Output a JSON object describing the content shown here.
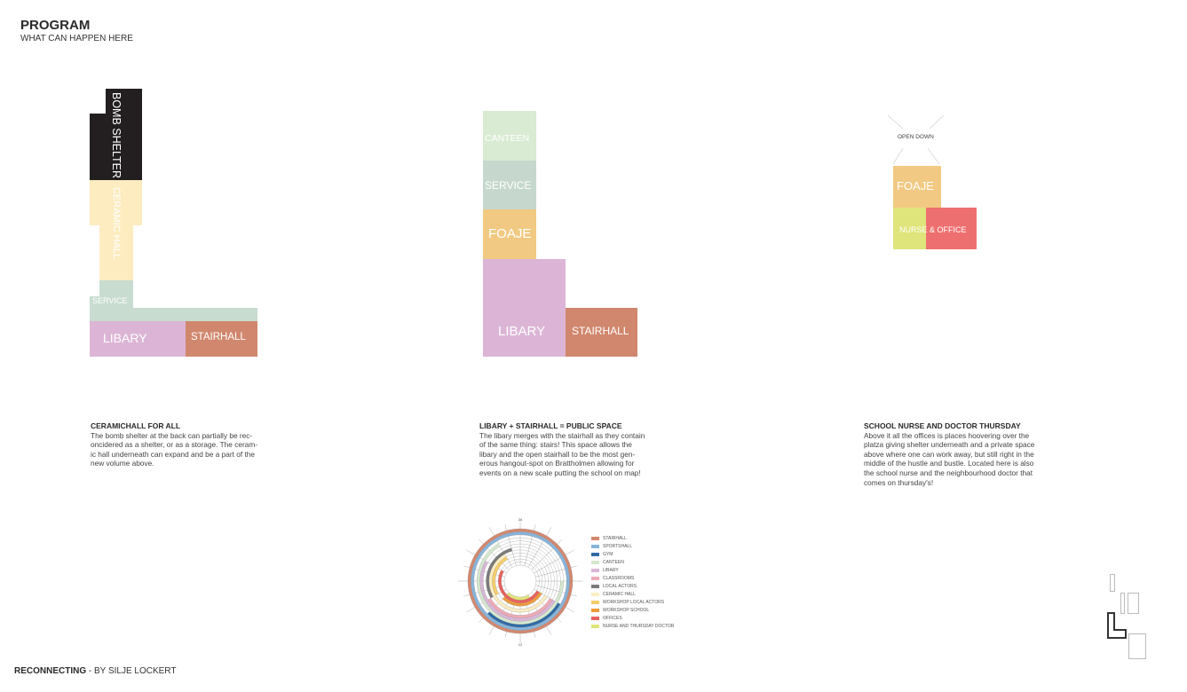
{
  "header": {
    "title": "PROGRAM",
    "subtitle": "WHAT CAN HAPPEN HERE"
  },
  "diagram_left": {
    "labels": {
      "bomb_shelter": "BOMB SHELTER",
      "ceramic_hall": "CERAMIC HALL",
      "service": "SERVICE",
      "libary": "LIBARY",
      "stairhall": "STAIRHALL"
    },
    "text": {
      "heading": "CERAMICHALL FOR ALL",
      "lines": [
        "The bomb shelter at the back can partially be rec-",
        "oncidered as a shelter, or as a storage. The ceram-",
        "ic hall underneath can expand and be a part of the",
        "new volume above."
      ]
    }
  },
  "diagram_middle": {
    "labels": {
      "canteen": "CANTEEN",
      "service": "SERVICE",
      "foaje": "FOAJE",
      "libary": "LIBARY",
      "stairhall": "STAIRHALL"
    },
    "text": {
      "heading": "LIBARY + STAIRHALL = PUBLIC SPACE",
      "lines": [
        "The libary merges with the stairhall as they contain",
        "of the same thing: stairs! This space allows the",
        "libary and the open stairhall to be the most gen-",
        "erous hangout-spot on Brattholmen allowing for",
        "events on a new scale putting the school on map!"
      ]
    }
  },
  "diagram_right": {
    "labels": {
      "open_down": "OPEN DOWN",
      "foaje": "FOAJE",
      "nurse_office": "NURSE & OFFICE"
    },
    "text": {
      "heading": "SCHOOL NURSE AND DOCTOR THURSDAY",
      "lines": [
        "Above it all the offices is places hoovering over the",
        "platza giving shelter underneath and a private space",
        "above where one can work away, but still right in the",
        "middle of the hustle and bustle.  Located here is also",
        "the school nurse and the neighbourhood doctor that",
        "comes on thursday's!"
      ]
    }
  },
  "colors": {
    "bomb_shelter": "#231f20",
    "ceramic_hall": "#fcecc0",
    "service": "#c8dccf",
    "libary": "#dcb5d6",
    "stairhall": "#d0876d",
    "canteen": "#d9ebd3",
    "foaje": "#f1c982",
    "nurse": "#dfe57a",
    "office": "#ee6f6f"
  },
  "chart_data": {
    "type": "radial-schedule",
    "tick_labels": {
      "top": "24",
      "bottom": "12"
    },
    "hours_range": [
      0,
      24
    ],
    "rings": [
      {
        "name": "STAIRHALL",
        "color": "#d4876e",
        "start": 0,
        "end": 24
      },
      {
        "name": "SPORTSHALL",
        "color": "#86b4da",
        "start": 0,
        "end": 24
      },
      {
        "name": "GYM",
        "color": "#2f6aa5",
        "start": 8,
        "end": 15
      },
      {
        "name": "CANTEEN",
        "color": "#d5e8cf",
        "start": 6,
        "end": 22
      },
      {
        "name": "LIBARY",
        "color": "#d9b6d8",
        "start": 8,
        "end": 20
      },
      {
        "name": "CLASSROOMS",
        "color": "#eeaab6",
        "start": 8,
        "end": 16
      },
      {
        "name": "LOCAL ACTORS",
        "color": "#7a7a7a",
        "start": 16,
        "end": 23
      },
      {
        "name": "CERAMIC HALL",
        "color": "#fbeec3",
        "start": 8,
        "end": 22
      },
      {
        "name": "WORKSHOP LOCAL ACTORS",
        "color": "#f6cd6a",
        "start": 16,
        "end": 22
      },
      {
        "name": "WORKSHOP SCHOOL",
        "color": "#ee9a3a",
        "start": 8,
        "end": 15
      },
      {
        "name": "OFFICES",
        "color": "#e8615c",
        "start": 8,
        "end": 20
      },
      {
        "name": "NURSE AND THURSDAY DOCTOR",
        "color": "#dfe47a",
        "start": 10,
        "end": 15
      }
    ]
  },
  "footer": {
    "title": "RECONNECTING",
    "byline": " - BY SILJE LOCKERT"
  }
}
